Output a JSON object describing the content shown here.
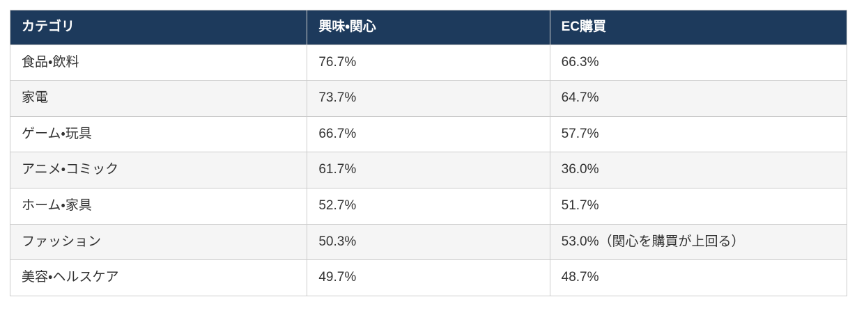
{
  "table": {
    "headers": {
      "category": "カテゴリ",
      "interest": "興味・関心",
      "ec_purchase": "EC購買"
    },
    "rows": [
      {
        "category": "食品・飲料",
        "interest": "76.7%",
        "ec_purchase": "66.3%"
      },
      {
        "category": "家電",
        "interest": "73.7%",
        "ec_purchase": "64.7%"
      },
      {
        "category": "ゲーム・玩具",
        "interest": "66.7%",
        "ec_purchase": "57.7%"
      },
      {
        "category": "アニメ・コミック",
        "interest": "61.7%",
        "ec_purchase": "36.0%"
      },
      {
        "category": "ホーム・家具",
        "interest": "52.7%",
        "ec_purchase": "51.7%"
      },
      {
        "category": "ファッション",
        "interest": "50.3%",
        "ec_purchase": "53.0%（関心を購買が上回る）"
      },
      {
        "category": "美容・ヘルスケア",
        "interest": "49.7%",
        "ec_purchase": "48.7%"
      }
    ]
  },
  "colors": {
    "header_background": "#1d3a5c",
    "header_text": "#ffffff",
    "row_stripe": "#f5f5f5",
    "row_white": "#ffffff",
    "border": "#cccccc",
    "body_text": "#333333",
    "page_background": "#ffffff"
  }
}
